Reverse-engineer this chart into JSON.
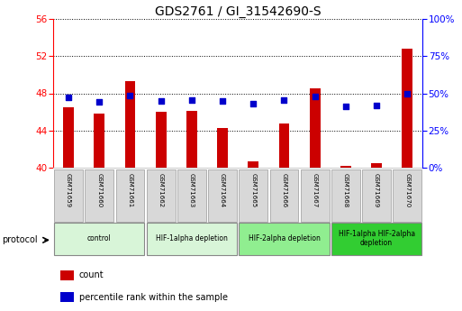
{
  "title": "GDS2761 / GI_31542690-S",
  "samples": [
    "GSM71659",
    "GSM71660",
    "GSM71661",
    "GSM71662",
    "GSM71663",
    "GSM71664",
    "GSM71665",
    "GSM71666",
    "GSM71667",
    "GSM71668",
    "GSM71669",
    "GSM71670"
  ],
  "count_values": [
    46.5,
    45.8,
    49.3,
    46.0,
    46.1,
    44.3,
    40.7,
    44.8,
    48.5,
    40.2,
    40.5,
    52.8
  ],
  "percentile_values": [
    47.0,
    44.5,
    48.2,
    44.7,
    45.3,
    44.7,
    43.0,
    45.3,
    48.0,
    41.5,
    42.0,
    49.5
  ],
  "ylim_left": [
    40,
    56
  ],
  "ylim_right": [
    0,
    100
  ],
  "yticks_left": [
    40,
    44,
    48,
    52,
    56
  ],
  "ytick_labels_right": [
    "0%",
    "25%",
    "50%",
    "75%",
    "100%"
  ],
  "yticks_right": [
    0,
    25,
    50,
    75,
    100
  ],
  "bar_color": "#cc0000",
  "dot_color": "#0000cc",
  "protocol_groups": [
    {
      "label": "control",
      "start": 0,
      "end": 2,
      "color": "#d8f5d8"
    },
    {
      "label": "HIF-1alpha depletion",
      "start": 3,
      "end": 5,
      "color": "#d8f5d8"
    },
    {
      "label": "HIF-2alpha depletion",
      "start": 6,
      "end": 8,
      "color": "#90ee90"
    },
    {
      "label": "HIF-1alpha HIF-2alpha\ndepletion",
      "start": 9,
      "end": 11,
      "color": "#32cd32"
    }
  ],
  "legend_items": [
    {
      "label": "count",
      "color": "#cc0000"
    },
    {
      "label": "percentile rank within the sample",
      "color": "#0000cc"
    }
  ],
  "bg_color": "#ffffff",
  "plot_bg_color": "#ffffff",
  "bar_width": 0.35,
  "dot_size": 18,
  "protocol_label": "protocol",
  "title_fontsize": 10,
  "tick_fontsize": 7.5,
  "label_fontsize": 6,
  "legend_fontsize": 8
}
